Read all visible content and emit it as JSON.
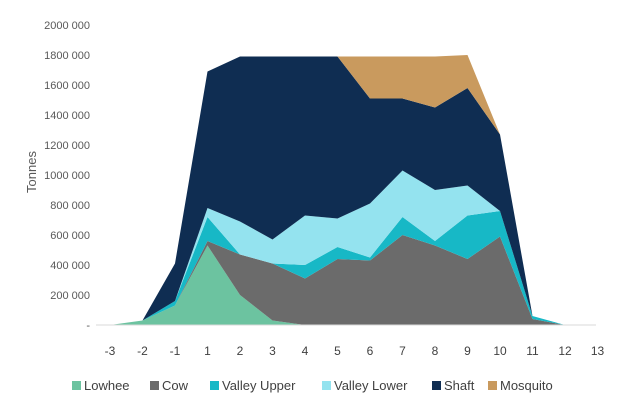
{
  "chart_data": {
    "type": "area",
    "stacked": true,
    "ylabel": "Tonnes",
    "xlabel": "",
    "title": "",
    "x": [
      -3,
      -2,
      -1,
      1,
      2,
      3,
      4,
      5,
      6,
      7,
      8,
      9,
      10,
      11,
      12
    ],
    "x_tick_labels": [
      "-3",
      "-2",
      "-1",
      "1",
      "2",
      "3",
      "4",
      "5",
      "6",
      "7",
      "8",
      "9",
      "10",
      "11",
      "12",
      "13"
    ],
    "xlim_ticks": 16,
    "ylim": [
      0,
      2000000
    ],
    "y_ticks": [
      0,
      200000,
      400000,
      600000,
      800000,
      1000000,
      1200000,
      1400000,
      1600000,
      1800000,
      2000000
    ],
    "y_tick_labels": [
      "-",
      "200 000",
      "400 000",
      "600 000",
      "800 000",
      "1000 000",
      "1200 000",
      "1400 000",
      "1600 000",
      "1800 000",
      "2000 000"
    ],
    "grid": false,
    "legend_position": "bottom",
    "series": [
      {
        "name": "Lowhee",
        "color": "#6cc3a0",
        "values": [
          0,
          30000,
          130000,
          530000,
          200000,
          30000,
          0,
          0,
          0,
          0,
          0,
          0,
          0,
          0,
          0
        ]
      },
      {
        "name": "Cow",
        "color": "#6b6b6b",
        "values": [
          0,
          0,
          0,
          30000,
          270000,
          380000,
          310000,
          440000,
          430000,
          600000,
          530000,
          440000,
          590000,
          40000,
          0
        ]
      },
      {
        "name": "Valley Upper",
        "color": "#17b8c6",
        "values": [
          0,
          0,
          30000,
          160000,
          0,
          0,
          90000,
          80000,
          20000,
          120000,
          30000,
          290000,
          170000,
          20000,
          0
        ]
      },
      {
        "name": "Valley Lower",
        "color": "#94e3ef",
        "values": [
          0,
          0,
          0,
          60000,
          220000,
          160000,
          330000,
          190000,
          360000,
          310000,
          340000,
          200000,
          0,
          0,
          0
        ]
      },
      {
        "name": "Shaft",
        "color": "#0f2d52",
        "values": [
          0,
          0,
          250000,
          910000,
          1100000,
          1220000,
          1060000,
          1080000,
          700000,
          480000,
          550000,
          650000,
          510000,
          0,
          0
        ]
      },
      {
        "name": "Mosquito",
        "color": "#c99a5e",
        "values": [
          0,
          0,
          0,
          0,
          0,
          0,
          0,
          0,
          280000,
          280000,
          340000,
          220000,
          0,
          0,
          0
        ]
      }
    ]
  }
}
